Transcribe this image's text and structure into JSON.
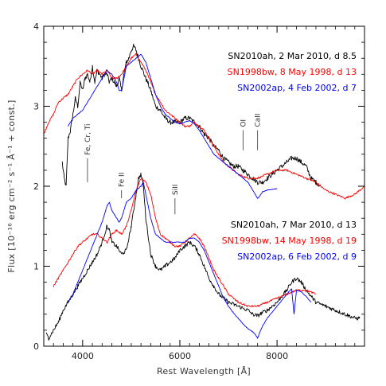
{
  "chart_data": {
    "type": "line",
    "xlabel": "Rest Wavelength [Å]",
    "ylabel": "Flux [10⁻¹⁶ erg cm⁻² s⁻¹ Å⁻¹ + const.]",
    "xlim": [
      3200,
      9800
    ],
    "ylim": [
      0,
      4
    ],
    "x_ticks": [
      4000,
      6000,
      8000
    ],
    "y_ticks": [
      0,
      1,
      2,
      3,
      4
    ],
    "grid": false,
    "legend_groups": [
      {
        "position": "upper-right",
        "entries": [
          {
            "text": "SN2010ah, 2 Mar 2010, d 8.5",
            "color": "#000000"
          },
          {
            "text": "SN1998bw, 8 May 1998, d 13",
            "color": "#ff0000"
          },
          {
            "text": "SN2002ap, 4 Feb 2002, d 7",
            "color": "#0000ff"
          }
        ]
      },
      {
        "position": "lower-right",
        "entries": [
          {
            "text": "SN2010ah, 7 Mar 2010, d 13",
            "color": "#000000"
          },
          {
            "text": "SN1998bw, 14 May 1998, d 19",
            "color": "#ff0000"
          },
          {
            "text": "SN2002ap, 6 Feb 2002, d 9",
            "color": "#0000ff"
          }
        ]
      }
    ],
    "line_labels": [
      {
        "text": "Fe, Cr, Ti",
        "x": 4100,
        "tick_y": [
          2.35,
          2.05
        ]
      },
      {
        "text": "Fe II",
        "x": 4800,
        "tick_y": [
          1.95,
          1.85
        ]
      },
      {
        "text": "SiII",
        "x": 5900,
        "tick_y": [
          1.85,
          1.65
        ]
      },
      {
        "text": "OI",
        "x": 7300,
        "tick_y": [
          2.7,
          2.45
        ]
      },
      {
        "text": "CaII",
        "x": 7600,
        "tick_y": [
          2.7,
          2.45
        ]
      }
    ],
    "series": [
      {
        "name": "SN2010ah, 2 Mar 2010, d 8.5",
        "color": "#000000",
        "noise": 0.03,
        "x": [
          3580,
          3620,
          3660,
          3700,
          3750,
          3800,
          3850,
          3900,
          3950,
          4000,
          4050,
          4100,
          4150,
          4200,
          4250,
          4300,
          4350,
          4400,
          4450,
          4500,
          4550,
          4600,
          4650,
          4700,
          4750,
          4800,
          4850,
          4900,
          4950,
          5000,
          5050,
          5100,
          5150,
          5200,
          5300,
          5400,
          5500,
          5600,
          5700,
          5800,
          5900,
          6000,
          6100,
          6200,
          6300,
          6400,
          6500,
          6600,
          6700,
          6800,
          6900,
          7000,
          7100,
          7200,
          7300,
          7400,
          7500,
          7600,
          7700,
          7800,
          7900,
          8000,
          8100,
          8200,
          8300,
          8400,
          8500,
          8600,
          8700,
          8800,
          8900
        ],
        "y": [
          2.3,
          2.1,
          2.0,
          2.6,
          2.7,
          2.9,
          3.1,
          3.0,
          3.3,
          3.2,
          3.35,
          3.4,
          3.3,
          3.5,
          3.3,
          3.45,
          3.4,
          3.35,
          3.4,
          3.4,
          3.3,
          3.35,
          3.3,
          3.25,
          3.35,
          3.2,
          3.4,
          3.55,
          3.6,
          3.7,
          3.75,
          3.7,
          3.6,
          3.5,
          3.35,
          3.2,
          3.0,
          2.95,
          2.85,
          2.8,
          2.8,
          2.8,
          2.85,
          2.85,
          2.8,
          2.75,
          2.65,
          2.6,
          2.5,
          2.45,
          2.35,
          2.3,
          2.25,
          2.25,
          2.2,
          2.15,
          2.1,
          2.05,
          2.05,
          2.1,
          2.15,
          2.2,
          2.25,
          2.3,
          2.35,
          2.35,
          2.3,
          2.25,
          2.1,
          2.05,
          2.0
        ]
      },
      {
        "name": "SN1998bw, 8 May 1998, d 13",
        "color": "#ff0000",
        "noise": 0.012,
        "x": [
          3200,
          3300,
          3400,
          3500,
          3600,
          3700,
          3800,
          3900,
          4000,
          4100,
          4200,
          4300,
          4400,
          4500,
          4600,
          4700,
          4800,
          4900,
          5000,
          5100,
          5200,
          5300,
          5400,
          5500,
          5600,
          5700,
          5800,
          5900,
          6000,
          6100,
          6200,
          6300,
          6400,
          6500,
          6600,
          6700,
          6800,
          6900,
          7000,
          7200,
          7400,
          7600,
          7800,
          8000,
          8200,
          8400,
          8600,
          8800,
          9000,
          9200,
          9400,
          9600,
          9800
        ],
        "y": [
          2.65,
          2.8,
          2.9,
          3.05,
          3.1,
          3.15,
          3.25,
          3.35,
          3.4,
          3.45,
          3.4,
          3.45,
          3.4,
          3.45,
          3.35,
          3.35,
          3.4,
          3.5,
          3.6,
          3.65,
          3.55,
          3.45,
          3.3,
          3.15,
          3.05,
          2.95,
          2.9,
          2.85,
          2.8,
          2.75,
          2.75,
          2.8,
          2.75,
          2.7,
          2.6,
          2.5,
          2.4,
          2.3,
          2.25,
          2.15,
          2.1,
          2.1,
          2.15,
          2.2,
          2.2,
          2.15,
          2.1,
          2.05,
          1.95,
          1.9,
          1.85,
          1.9,
          2.0
        ]
      },
      {
        "name": "SN2002ap, 4 Feb 2002, d 7",
        "color": "#0000ff",
        "noise": 0.004,
        "x": [
          3700,
          3800,
          3900,
          4000,
          4100,
          4200,
          4300,
          4400,
          4500,
          4600,
          4700,
          4750,
          4800,
          4850,
          4900,
          5000,
          5100,
          5200,
          5300,
          5400,
          5500,
          5600,
          5700,
          5800,
          5900,
          6000,
          6100,
          6200,
          6300,
          6400,
          6500,
          6600,
          6700,
          6800,
          6900,
          7000,
          7100,
          7200,
          7300,
          7400,
          7500,
          7600,
          7650,
          7700,
          7800,
          7900,
          8000
        ],
        "y": [
          2.75,
          2.85,
          2.9,
          2.95,
          3.05,
          3.15,
          3.25,
          3.35,
          3.45,
          3.4,
          3.3,
          3.2,
          3.2,
          3.35,
          3.5,
          3.55,
          3.6,
          3.65,
          3.55,
          3.35,
          3.15,
          3.0,
          2.9,
          2.85,
          2.8,
          2.78,
          2.8,
          2.82,
          2.78,
          2.7,
          2.6,
          2.5,
          2.4,
          2.35,
          2.3,
          2.25,
          2.2,
          2.15,
          2.1,
          2.05,
          1.95,
          1.85,
          1.88,
          1.93,
          1.95,
          1.96,
          1.97
        ]
      },
      {
        "name": "SN2010ah, 7 Mar 2010, d 13",
        "color": "#000000",
        "noise": 0.025,
        "x": [
          3250,
          3300,
          3400,
          3500,
          3600,
          3700,
          3800,
          3900,
          4000,
          4100,
          4200,
          4300,
          4400,
          4500,
          4550,
          4600,
          4700,
          4800,
          4900,
          5000,
          5100,
          5150,
          5200,
          5250,
          5300,
          5400,
          5500,
          5600,
          5700,
          5800,
          5900,
          6000,
          6100,
          6200,
          6300,
          6400,
          6500,
          6600,
          6700,
          6800,
          6900,
          7000,
          7200,
          7400,
          7500,
          7600,
          7700,
          7800,
          8000,
          8200,
          8300,
          8400,
          8500,
          8600,
          8800,
          9000,
          9200,
          9400,
          9600,
          9700
        ],
        "y": [
          0.15,
          0.1,
          0.2,
          0.3,
          0.45,
          0.55,
          0.65,
          0.75,
          0.85,
          0.95,
          1.05,
          1.15,
          1.3,
          1.5,
          1.45,
          1.3,
          1.25,
          1.15,
          1.2,
          1.5,
          1.9,
          2.1,
          2.15,
          2.0,
          1.6,
          1.15,
          1.0,
          0.95,
          1.0,
          1.05,
          1.1,
          1.2,
          1.25,
          1.3,
          1.25,
          1.15,
          1.0,
          0.85,
          0.75,
          0.65,
          0.6,
          0.55,
          0.5,
          0.45,
          0.4,
          0.38,
          0.42,
          0.45,
          0.55,
          0.7,
          0.8,
          0.85,
          0.8,
          0.7,
          0.55,
          0.5,
          0.45,
          0.4,
          0.35,
          0.35
        ]
      },
      {
        "name": "SN1998bw, 14 May 1998, d 19",
        "color": "#ff0000",
        "noise": 0.012,
        "x": [
          3400,
          3500,
          3600,
          3700,
          3800,
          3900,
          4000,
          4100,
          4200,
          4300,
          4400,
          4500,
          4600,
          4700,
          4800,
          4900,
          5000,
          5100,
          5200,
          5300,
          5400,
          5500,
          5600,
          5700,
          5800,
          5900,
          6000,
          6100,
          6200,
          6300,
          6400,
          6500,
          6600,
          6700,
          6800,
          6900,
          7000,
          7200,
          7400,
          7600,
          7800,
          8000,
          8200,
          8400,
          8600,
          8800
        ],
        "y": [
          0.75,
          0.85,
          0.95,
          1.05,
          1.15,
          1.25,
          1.3,
          1.35,
          1.4,
          1.4,
          1.35,
          1.3,
          1.4,
          1.45,
          1.4,
          1.5,
          1.7,
          1.95,
          2.1,
          2.05,
          1.9,
          1.6,
          1.4,
          1.35,
          1.3,
          1.25,
          1.25,
          1.3,
          1.35,
          1.4,
          1.35,
          1.25,
          1.1,
          0.95,
          0.85,
          0.75,
          0.65,
          0.55,
          0.5,
          0.5,
          0.55,
          0.6,
          0.65,
          0.7,
          0.7,
          0.65
        ]
      },
      {
        "name": "SN2002ap, 6 Feb 2002, d 9",
        "color": "#0000ff",
        "noise": 0.004,
        "x": [
          3700,
          3800,
          3900,
          4000,
          4100,
          4200,
          4300,
          4400,
          4500,
          4550,
          4600,
          4700,
          4750,
          4800,
          4850,
          4900,
          5000,
          5100,
          5200,
          5250,
          5300,
          5400,
          5500,
          5600,
          5700,
          5800,
          5900,
          6000,
          6100,
          6200,
          6300,
          6400,
          6500,
          6600,
          6700,
          6800,
          6900,
          7000,
          7100,
          7200,
          7300,
          7400,
          7500,
          7550,
          7600,
          7650,
          7700,
          7800,
          8000,
          8200,
          8300,
          8350,
          8400,
          8500,
          8600,
          8700
        ],
        "y": [
          0.55,
          0.65,
          0.8,
          0.95,
          1.1,
          1.25,
          1.4,
          1.55,
          1.75,
          1.8,
          1.7,
          1.6,
          1.55,
          1.6,
          1.7,
          1.8,
          1.85,
          1.95,
          2.0,
          2.05,
          1.9,
          1.6,
          1.4,
          1.35,
          1.3,
          1.3,
          1.3,
          1.3,
          1.3,
          1.35,
          1.35,
          1.3,
          1.2,
          1.05,
          0.9,
          0.75,
          0.6,
          0.5,
          0.42,
          0.35,
          0.28,
          0.22,
          0.18,
          0.15,
          0.1,
          0.18,
          0.25,
          0.35,
          0.5,
          0.65,
          0.72,
          0.4,
          0.7,
          0.68,
          0.62,
          0.55
        ]
      }
    ]
  }
}
